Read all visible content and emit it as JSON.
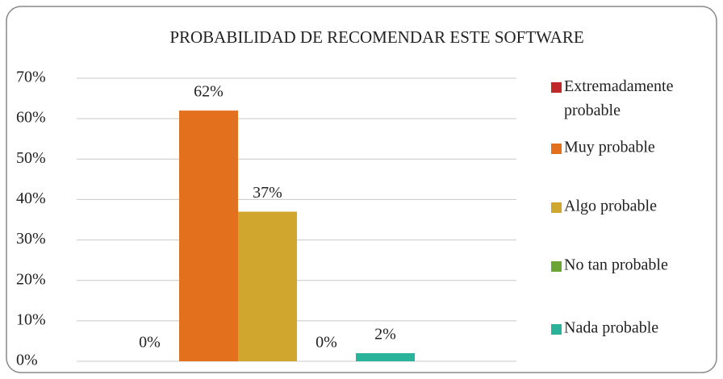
{
  "chart_data": {
    "type": "bar",
    "title": "PROBABILIDAD DE RECOMENDAR ESTE SOFTWARE",
    "series": [
      {
        "name": "Extremadamente probable",
        "color": "#c0282a",
        "values": [
          0
        ],
        "value_labels": [
          "0%"
        ]
      },
      {
        "name": "Muy probable",
        "color": "#e3701c",
        "values": [
          62
        ],
        "value_labels": [
          "62%"
        ]
      },
      {
        "name": "Algo probable",
        "color": "#d1a62f",
        "values": [
          37
        ],
        "value_labels": [
          "37%"
        ]
      },
      {
        "name": "No tan probable",
        "color": "#6aa536",
        "values": [
          0
        ],
        "value_labels": [
          "0%"
        ]
      },
      {
        "name": "Nada probable",
        "color": "#2bb39a",
        "values": [
          2
        ],
        "value_labels": [
          "2%"
        ]
      }
    ],
    "ylim": [
      0,
      70
    ],
    "yticks": [
      {
        "value": 0,
        "label": "0%"
      },
      {
        "value": 10,
        "label": "10%"
      },
      {
        "value": 20,
        "label": "20%"
      },
      {
        "value": 30,
        "label": "30%"
      },
      {
        "value": 40,
        "label": "40%"
      },
      {
        "value": 50,
        "label": "50%"
      },
      {
        "value": 60,
        "label": "60%"
      },
      {
        "value": 70,
        "label": "70%"
      }
    ],
    "grid": true,
    "legend": "right"
  }
}
